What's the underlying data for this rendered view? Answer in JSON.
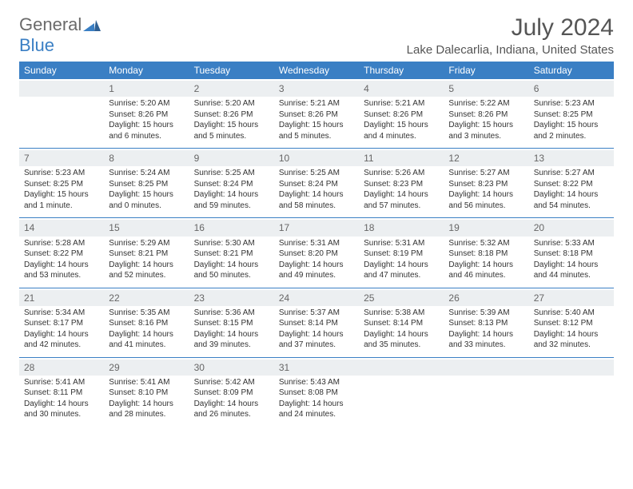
{
  "brand": {
    "part1": "General",
    "part2": "Blue"
  },
  "title": "July 2024",
  "location": "Lake Dalecarlia, Indiana, United States",
  "colors": {
    "header_bg": "#3a7fc4",
    "header_text": "#ffffff",
    "daynum_bg": "#eceff1",
    "row_border": "#3a7fc4",
    "text": "#333333",
    "title_text": "#555555"
  },
  "weekdays": [
    "Sunday",
    "Monday",
    "Tuesday",
    "Wednesday",
    "Thursday",
    "Friday",
    "Saturday"
  ],
  "weeks": [
    [
      null,
      {
        "n": "1",
        "sunrise": "Sunrise: 5:20 AM",
        "sunset": "Sunset: 8:26 PM",
        "d1": "Daylight: 15 hours",
        "d2": "and 6 minutes."
      },
      {
        "n": "2",
        "sunrise": "Sunrise: 5:20 AM",
        "sunset": "Sunset: 8:26 PM",
        "d1": "Daylight: 15 hours",
        "d2": "and 5 minutes."
      },
      {
        "n": "3",
        "sunrise": "Sunrise: 5:21 AM",
        "sunset": "Sunset: 8:26 PM",
        "d1": "Daylight: 15 hours",
        "d2": "and 5 minutes."
      },
      {
        "n": "4",
        "sunrise": "Sunrise: 5:21 AM",
        "sunset": "Sunset: 8:26 PM",
        "d1": "Daylight: 15 hours",
        "d2": "and 4 minutes."
      },
      {
        "n": "5",
        "sunrise": "Sunrise: 5:22 AM",
        "sunset": "Sunset: 8:26 PM",
        "d1": "Daylight: 15 hours",
        "d2": "and 3 minutes."
      },
      {
        "n": "6",
        "sunrise": "Sunrise: 5:23 AM",
        "sunset": "Sunset: 8:25 PM",
        "d1": "Daylight: 15 hours",
        "d2": "and 2 minutes."
      }
    ],
    [
      {
        "n": "7",
        "sunrise": "Sunrise: 5:23 AM",
        "sunset": "Sunset: 8:25 PM",
        "d1": "Daylight: 15 hours",
        "d2": "and 1 minute."
      },
      {
        "n": "8",
        "sunrise": "Sunrise: 5:24 AM",
        "sunset": "Sunset: 8:25 PM",
        "d1": "Daylight: 15 hours",
        "d2": "and 0 minutes."
      },
      {
        "n": "9",
        "sunrise": "Sunrise: 5:25 AM",
        "sunset": "Sunset: 8:24 PM",
        "d1": "Daylight: 14 hours",
        "d2": "and 59 minutes."
      },
      {
        "n": "10",
        "sunrise": "Sunrise: 5:25 AM",
        "sunset": "Sunset: 8:24 PM",
        "d1": "Daylight: 14 hours",
        "d2": "and 58 minutes."
      },
      {
        "n": "11",
        "sunrise": "Sunrise: 5:26 AM",
        "sunset": "Sunset: 8:23 PM",
        "d1": "Daylight: 14 hours",
        "d2": "and 57 minutes."
      },
      {
        "n": "12",
        "sunrise": "Sunrise: 5:27 AM",
        "sunset": "Sunset: 8:23 PM",
        "d1": "Daylight: 14 hours",
        "d2": "and 56 minutes."
      },
      {
        "n": "13",
        "sunrise": "Sunrise: 5:27 AM",
        "sunset": "Sunset: 8:22 PM",
        "d1": "Daylight: 14 hours",
        "d2": "and 54 minutes."
      }
    ],
    [
      {
        "n": "14",
        "sunrise": "Sunrise: 5:28 AM",
        "sunset": "Sunset: 8:22 PM",
        "d1": "Daylight: 14 hours",
        "d2": "and 53 minutes."
      },
      {
        "n": "15",
        "sunrise": "Sunrise: 5:29 AM",
        "sunset": "Sunset: 8:21 PM",
        "d1": "Daylight: 14 hours",
        "d2": "and 52 minutes."
      },
      {
        "n": "16",
        "sunrise": "Sunrise: 5:30 AM",
        "sunset": "Sunset: 8:21 PM",
        "d1": "Daylight: 14 hours",
        "d2": "and 50 minutes."
      },
      {
        "n": "17",
        "sunrise": "Sunrise: 5:31 AM",
        "sunset": "Sunset: 8:20 PM",
        "d1": "Daylight: 14 hours",
        "d2": "and 49 minutes."
      },
      {
        "n": "18",
        "sunrise": "Sunrise: 5:31 AM",
        "sunset": "Sunset: 8:19 PM",
        "d1": "Daylight: 14 hours",
        "d2": "and 47 minutes."
      },
      {
        "n": "19",
        "sunrise": "Sunrise: 5:32 AM",
        "sunset": "Sunset: 8:18 PM",
        "d1": "Daylight: 14 hours",
        "d2": "and 46 minutes."
      },
      {
        "n": "20",
        "sunrise": "Sunrise: 5:33 AM",
        "sunset": "Sunset: 8:18 PM",
        "d1": "Daylight: 14 hours",
        "d2": "and 44 minutes."
      }
    ],
    [
      {
        "n": "21",
        "sunrise": "Sunrise: 5:34 AM",
        "sunset": "Sunset: 8:17 PM",
        "d1": "Daylight: 14 hours",
        "d2": "and 42 minutes."
      },
      {
        "n": "22",
        "sunrise": "Sunrise: 5:35 AM",
        "sunset": "Sunset: 8:16 PM",
        "d1": "Daylight: 14 hours",
        "d2": "and 41 minutes."
      },
      {
        "n": "23",
        "sunrise": "Sunrise: 5:36 AM",
        "sunset": "Sunset: 8:15 PM",
        "d1": "Daylight: 14 hours",
        "d2": "and 39 minutes."
      },
      {
        "n": "24",
        "sunrise": "Sunrise: 5:37 AM",
        "sunset": "Sunset: 8:14 PM",
        "d1": "Daylight: 14 hours",
        "d2": "and 37 minutes."
      },
      {
        "n": "25",
        "sunrise": "Sunrise: 5:38 AM",
        "sunset": "Sunset: 8:14 PM",
        "d1": "Daylight: 14 hours",
        "d2": "and 35 minutes."
      },
      {
        "n": "26",
        "sunrise": "Sunrise: 5:39 AM",
        "sunset": "Sunset: 8:13 PM",
        "d1": "Daylight: 14 hours",
        "d2": "and 33 minutes."
      },
      {
        "n": "27",
        "sunrise": "Sunrise: 5:40 AM",
        "sunset": "Sunset: 8:12 PM",
        "d1": "Daylight: 14 hours",
        "d2": "and 32 minutes."
      }
    ],
    [
      {
        "n": "28",
        "sunrise": "Sunrise: 5:41 AM",
        "sunset": "Sunset: 8:11 PM",
        "d1": "Daylight: 14 hours",
        "d2": "and 30 minutes."
      },
      {
        "n": "29",
        "sunrise": "Sunrise: 5:41 AM",
        "sunset": "Sunset: 8:10 PM",
        "d1": "Daylight: 14 hours",
        "d2": "and 28 minutes."
      },
      {
        "n": "30",
        "sunrise": "Sunrise: 5:42 AM",
        "sunset": "Sunset: 8:09 PM",
        "d1": "Daylight: 14 hours",
        "d2": "and 26 minutes."
      },
      {
        "n": "31",
        "sunrise": "Sunrise: 5:43 AM",
        "sunset": "Sunset: 8:08 PM",
        "d1": "Daylight: 14 hours",
        "d2": "and 24 minutes."
      },
      null,
      null,
      null
    ]
  ]
}
